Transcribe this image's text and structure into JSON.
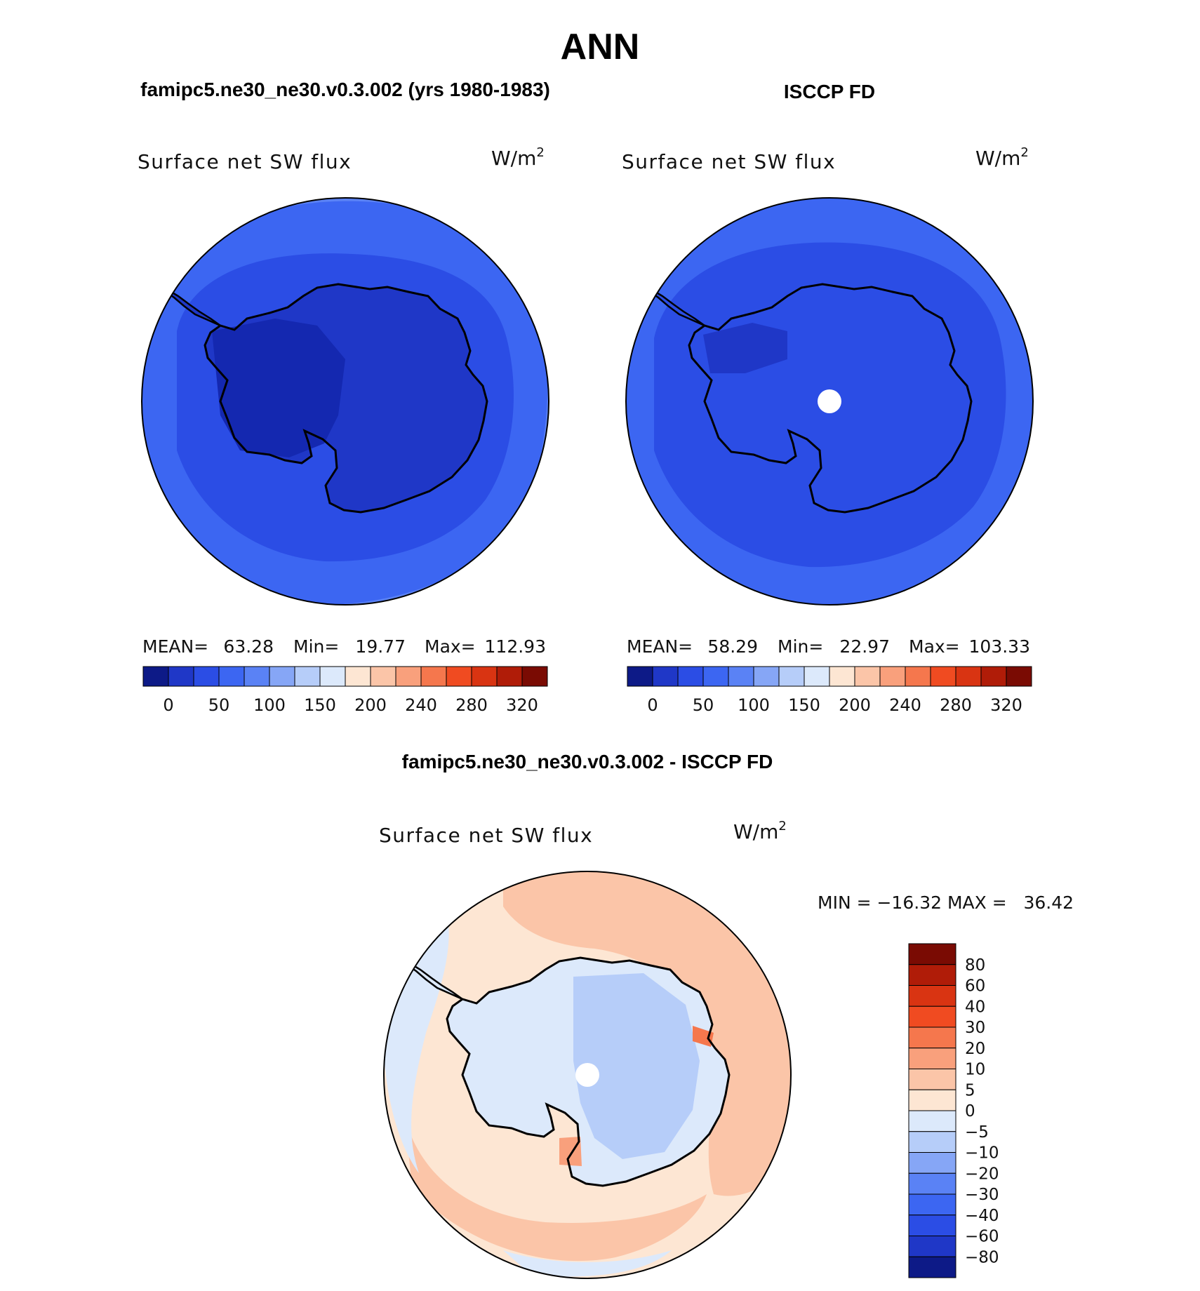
{
  "figure": {
    "title": "ANN"
  },
  "panels": {
    "model": {
      "heading": "famipc5.ne30_ne30.v0.3.002 (yrs 1980-1983)",
      "variable": "Surface net SW flux",
      "units_base": "W/m",
      "units_exp": "2",
      "stats": {
        "mean_label": "MEAN=",
        "mean_value": "63.28",
        "min_label": "Min=",
        "min_value": "19.77",
        "max_label": "Max=",
        "max_value": "112.93"
      }
    },
    "obs": {
      "heading": "ISCCP FD",
      "variable": "Surface net SW flux",
      "units_base": "W/m",
      "units_exp": "2",
      "stats": {
        "mean_label": "MEAN=",
        "mean_value": "58.29",
        "min_label": "Min=",
        "min_value": "22.97",
        "max_label": "Max=",
        "max_value": "103.33"
      }
    },
    "diff": {
      "heading": "famipc5.ne30_ne30.v0.3.002 - ISCCP FD",
      "variable": "Surface net SW flux",
      "units_base": "W/m",
      "units_exp": "2",
      "range_text": "MIN = −16.32 MAX =   36.42"
    }
  },
  "chart_data": [
    {
      "type": "heatmap",
      "subtype": "south-polar-stereographic contour map",
      "title": "famipc5.ne30_ne30.v0.3.002 (yrs 1980-1983)",
      "variable": "Surface net SW flux",
      "units": "W/m2",
      "mean": 63.28,
      "min": 19.77,
      "max": 112.93,
      "colorbar_levels": [
        0,
        25,
        50,
        75,
        100,
        125,
        150,
        175,
        200,
        220,
        240,
        260,
        280,
        300,
        320
      ],
      "colorbar_tick_labels": [
        "0",
        "50",
        "100",
        "150",
        "200",
        "240",
        "280",
        "320"
      ],
      "colorbar_colors": [
        "#0d1a87",
        "#1f37c7",
        "#2b4de5",
        "#3c66f2",
        "#5a82f5",
        "#86a6f6",
        "#b6cdf9",
        "#dce9fb",
        "#fde6d3",
        "#fbc5a8",
        "#f9a07c",
        "#f5774d",
        "#f04b21",
        "#d93412",
        "#b01c08",
        "#7a0b03"
      ]
    },
    {
      "type": "heatmap",
      "subtype": "south-polar-stereographic contour map",
      "title": "ISCCP FD",
      "variable": "Surface net SW flux",
      "units": "W/m2",
      "mean": 58.29,
      "min": 22.97,
      "max": 103.33,
      "colorbar_levels": [
        0,
        25,
        50,
        75,
        100,
        125,
        150,
        175,
        200,
        220,
        240,
        260,
        280,
        300,
        320
      ],
      "colorbar_tick_labels": [
        "0",
        "50",
        "100",
        "150",
        "200",
        "240",
        "280",
        "320"
      ],
      "colorbar_colors": [
        "#0d1a87",
        "#1f37c7",
        "#2b4de5",
        "#3c66f2",
        "#5a82f5",
        "#86a6f6",
        "#b6cdf9",
        "#dce9fb",
        "#fde6d3",
        "#fbc5a8",
        "#f9a07c",
        "#f5774d",
        "#f04b21",
        "#d93412",
        "#b01c08",
        "#7a0b03"
      ]
    },
    {
      "type": "heatmap",
      "subtype": "south-polar-stereographic contour map (difference)",
      "title": "famipc5.ne30_ne30.v0.3.002 - ISCCP FD",
      "variable": "Surface net SW flux",
      "units": "W/m2",
      "min": -16.32,
      "max": 36.42,
      "colorbar_tick_labels": [
        "80",
        "60",
        "40",
        "30",
        "20",
        "10",
        "5",
        "0",
        "−5",
        "−10",
        "−20",
        "−30",
        "−40",
        "−60",
        "−80"
      ],
      "colorbar_colors_top_to_bottom": [
        "#7a0b03",
        "#b01c08",
        "#d93412",
        "#f04b21",
        "#f5774d",
        "#f9a07c",
        "#fbc5a8",
        "#fde6d3",
        "#dce9fb",
        "#b6cdf9",
        "#86a6f6",
        "#5a82f5",
        "#3c66f2",
        "#2b4de5",
        "#1f37c7",
        "#0d1a87"
      ]
    }
  ],
  "colors": {
    "ant_model": "#1f37c7",
    "ant_model_dark": "#1428b0",
    "ring1": "#2b4de5",
    "ring2": "#3c66f2",
    "ring3": "#5a82f5",
    "diff_ant": "#dce9fb",
    "diff_ant_inner": "#b6cdf9",
    "diff_ring_pos": "#fde6d3",
    "diff_ring_pos2": "#fbc5a8"
  }
}
